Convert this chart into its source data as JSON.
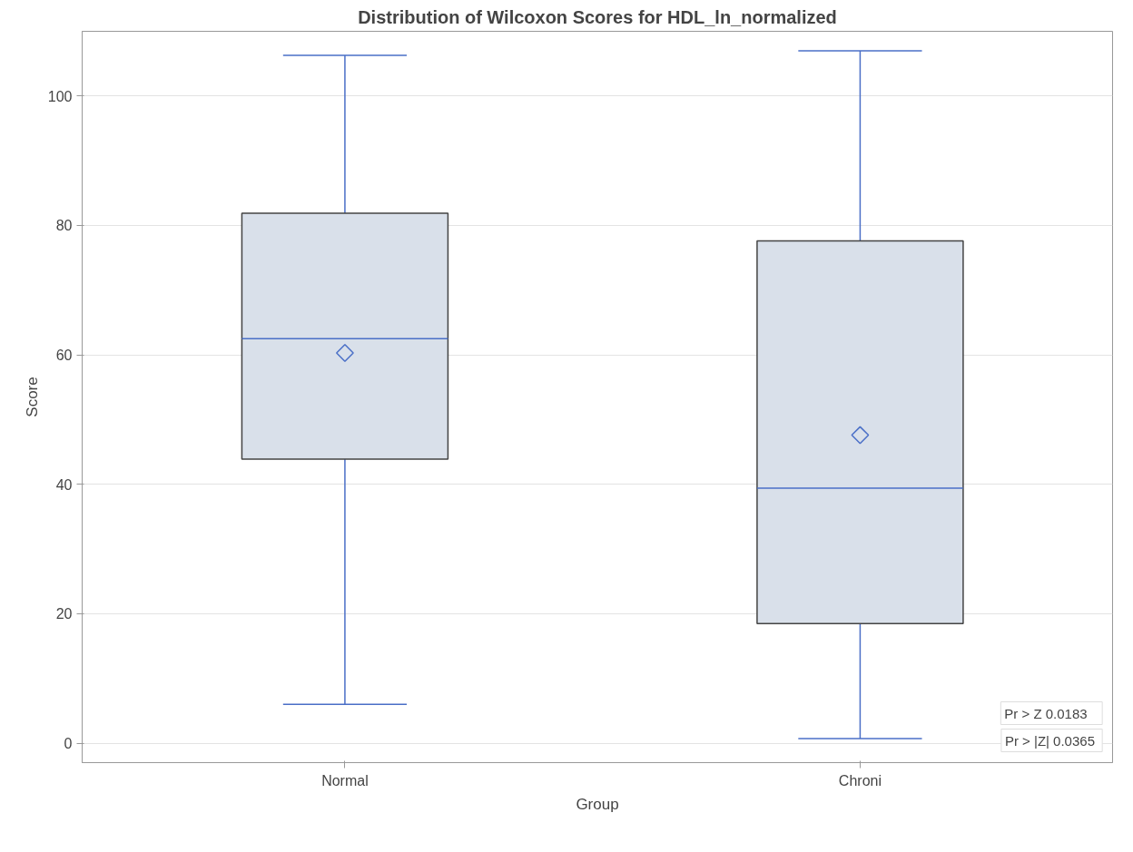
{
  "chart_data": {
    "type": "box",
    "title": "Distribution of Wilcoxon Scores for HDL_ln_normalized",
    "xlabel": "Group",
    "ylabel": "Score",
    "categories": [
      "Normal",
      "Chroni"
    ],
    "boxes": [
      {
        "low": 6.0,
        "q1": 43.9,
        "median": 62.5,
        "q3": 81.9,
        "high": 106.3,
        "mean": 60.3
      },
      {
        "low": 0.7,
        "q1": 18.5,
        "median": 39.4,
        "q3": 77.6,
        "high": 107.0,
        "mean": 47.6
      }
    ],
    "color": "#d9e0ea",
    "ylim": [
      -3,
      110
    ],
    "yticks": [
      0,
      20,
      40,
      60,
      80,
      100
    ],
    "grid": "y",
    "marker": "diamond",
    "annotations": [
      "Pr > Z    0.0183",
      "Pr > |Z|  0.0365"
    ]
  }
}
